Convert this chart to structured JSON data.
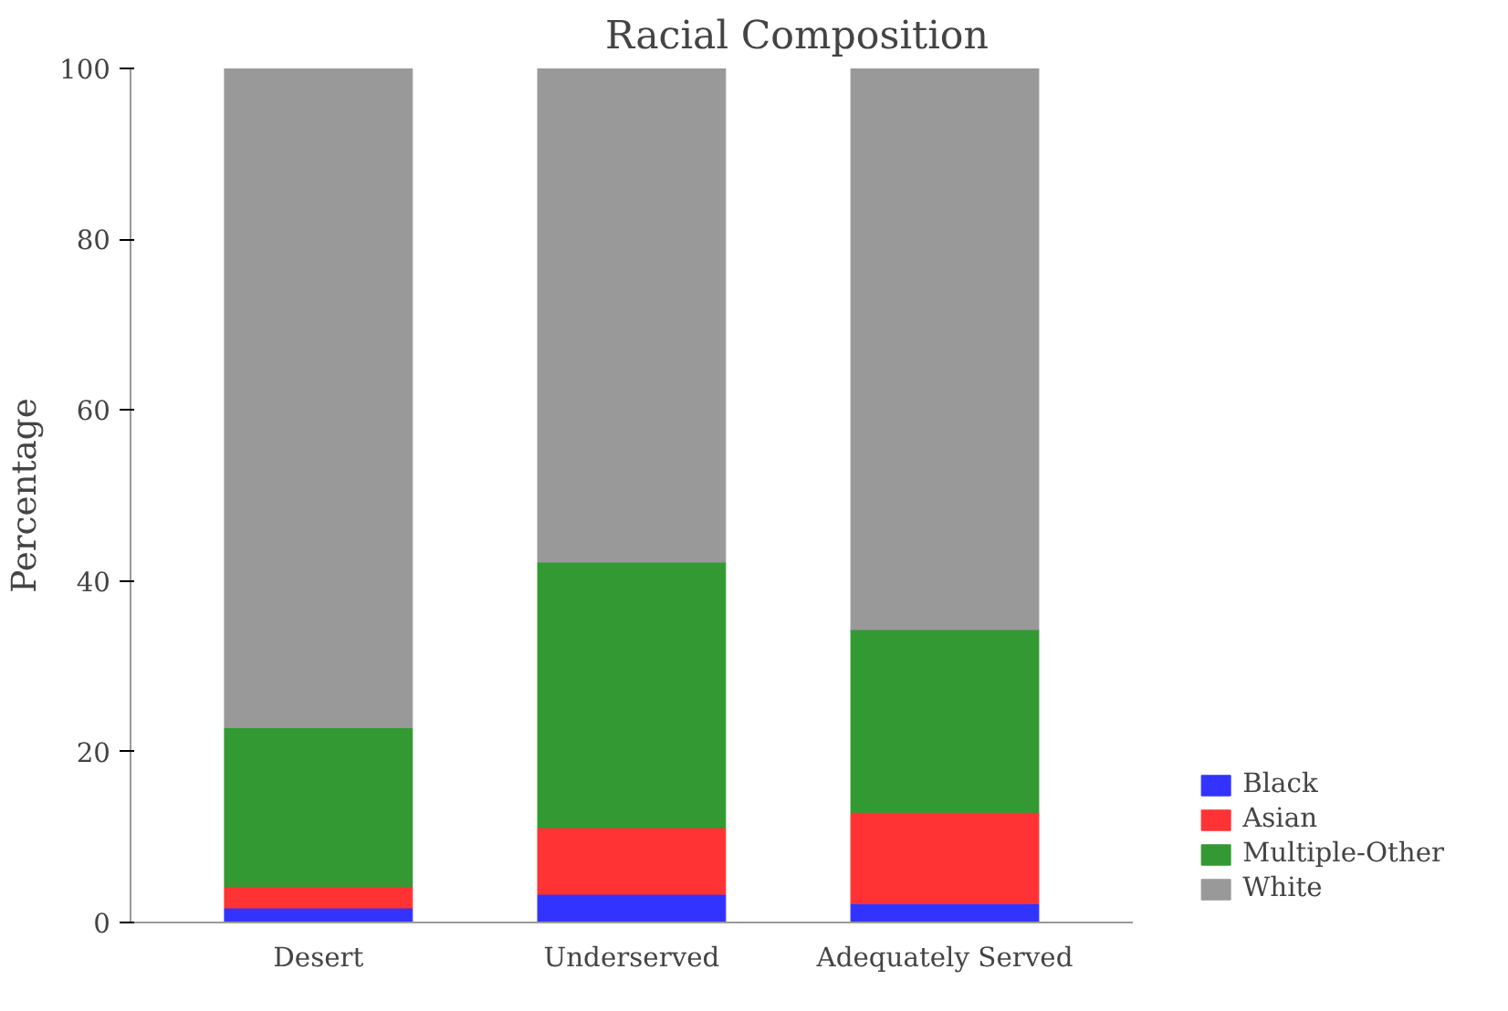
{
  "chart_data": {
    "type": "bar",
    "title": "Racial Composition",
    "ylabel": "Percentage",
    "categories": [
      "Desert",
      "Underserved",
      "Adequately Served"
    ],
    "stacked": true,
    "series": [
      {
        "name": "Black",
        "color": "#3333ff",
        "values": [
          1.7,
          3.3,
          2.2
        ]
      },
      {
        "name": "Asian",
        "color": "#ff3333",
        "values": [
          2.5,
          7.8,
          10.7
        ]
      },
      {
        "name": "Multiple-Other",
        "color": "#339933",
        "values": [
          18.6,
          31.1,
          21.4
        ]
      },
      {
        "name": "White",
        "color": "#999999",
        "values": [
          77.2,
          57.8,
          65.7
        ]
      }
    ],
    "ylim": [
      0,
      100
    ],
    "yticks": [
      0,
      20,
      40,
      60,
      80,
      100
    ],
    "grid": false,
    "legend": "bottom right"
  }
}
